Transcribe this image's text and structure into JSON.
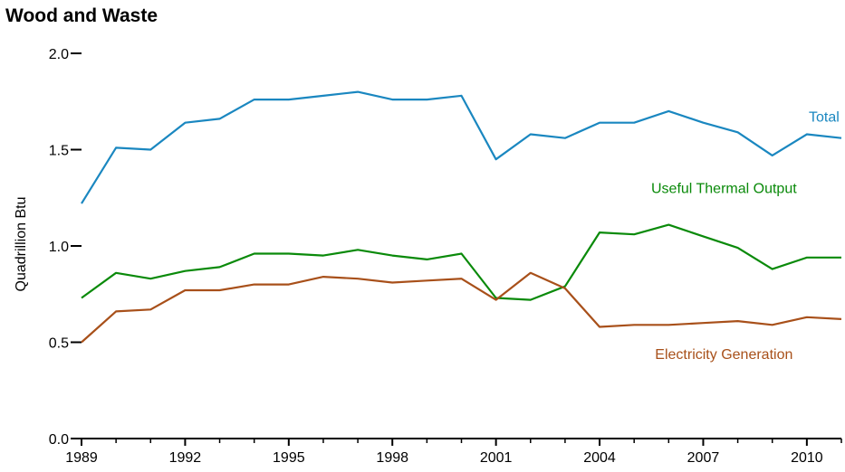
{
  "chart_data": {
    "type": "line",
    "title": "Wood and Waste",
    "ylabel": "Quadrillion Btu",
    "xlabel": "",
    "xlim": [
      1989,
      2011
    ],
    "ylim": [
      0,
      2.0
    ],
    "x_ticks": [
      1989,
      1992,
      1995,
      1998,
      2001,
      2004,
      2007,
      2010
    ],
    "y_ticks": [
      0.0,
      0.5,
      1.0,
      1.5,
      2.0
    ],
    "y_tick_labels": [
      "0.0",
      "0.5",
      "1.0",
      "1.5",
      "2.0"
    ],
    "grid": false,
    "x": [
      1989,
      1990,
      1991,
      1992,
      1993,
      1994,
      1995,
      1996,
      1997,
      1998,
      1999,
      2000,
      2001,
      2002,
      2003,
      2004,
      2005,
      2006,
      2007,
      2008,
      2009,
      2010,
      2011
    ],
    "series": [
      {
        "name": "Total",
        "color": "#1a87c0",
        "values": [
          1.22,
          1.51,
          1.5,
          1.64,
          1.66,
          1.76,
          1.76,
          1.78,
          1.8,
          1.76,
          1.76,
          1.78,
          1.45,
          1.58,
          1.56,
          1.64,
          1.64,
          1.7,
          1.64,
          1.59,
          1.47,
          1.58,
          1.56
        ]
      },
      {
        "name": "Useful Thermal Output",
        "color": "#0a8a0a",
        "values": [
          0.73,
          0.86,
          0.83,
          0.87,
          0.89,
          0.96,
          0.96,
          0.95,
          0.98,
          0.95,
          0.93,
          0.96,
          0.73,
          0.72,
          0.79,
          1.07,
          1.06,
          1.11,
          1.05,
          0.99,
          0.88,
          0.94,
          0.94
        ]
      },
      {
        "name": "Electricity Generation",
        "color": "#a8501a",
        "values": [
          0.5,
          0.66,
          0.67,
          0.77,
          0.77,
          0.8,
          0.8,
          0.84,
          0.83,
          0.81,
          0.82,
          0.83,
          0.72,
          0.86,
          0.78,
          0.58,
          0.59,
          0.59,
          0.6,
          0.61,
          0.59,
          0.63,
          0.62
        ]
      }
    ]
  }
}
